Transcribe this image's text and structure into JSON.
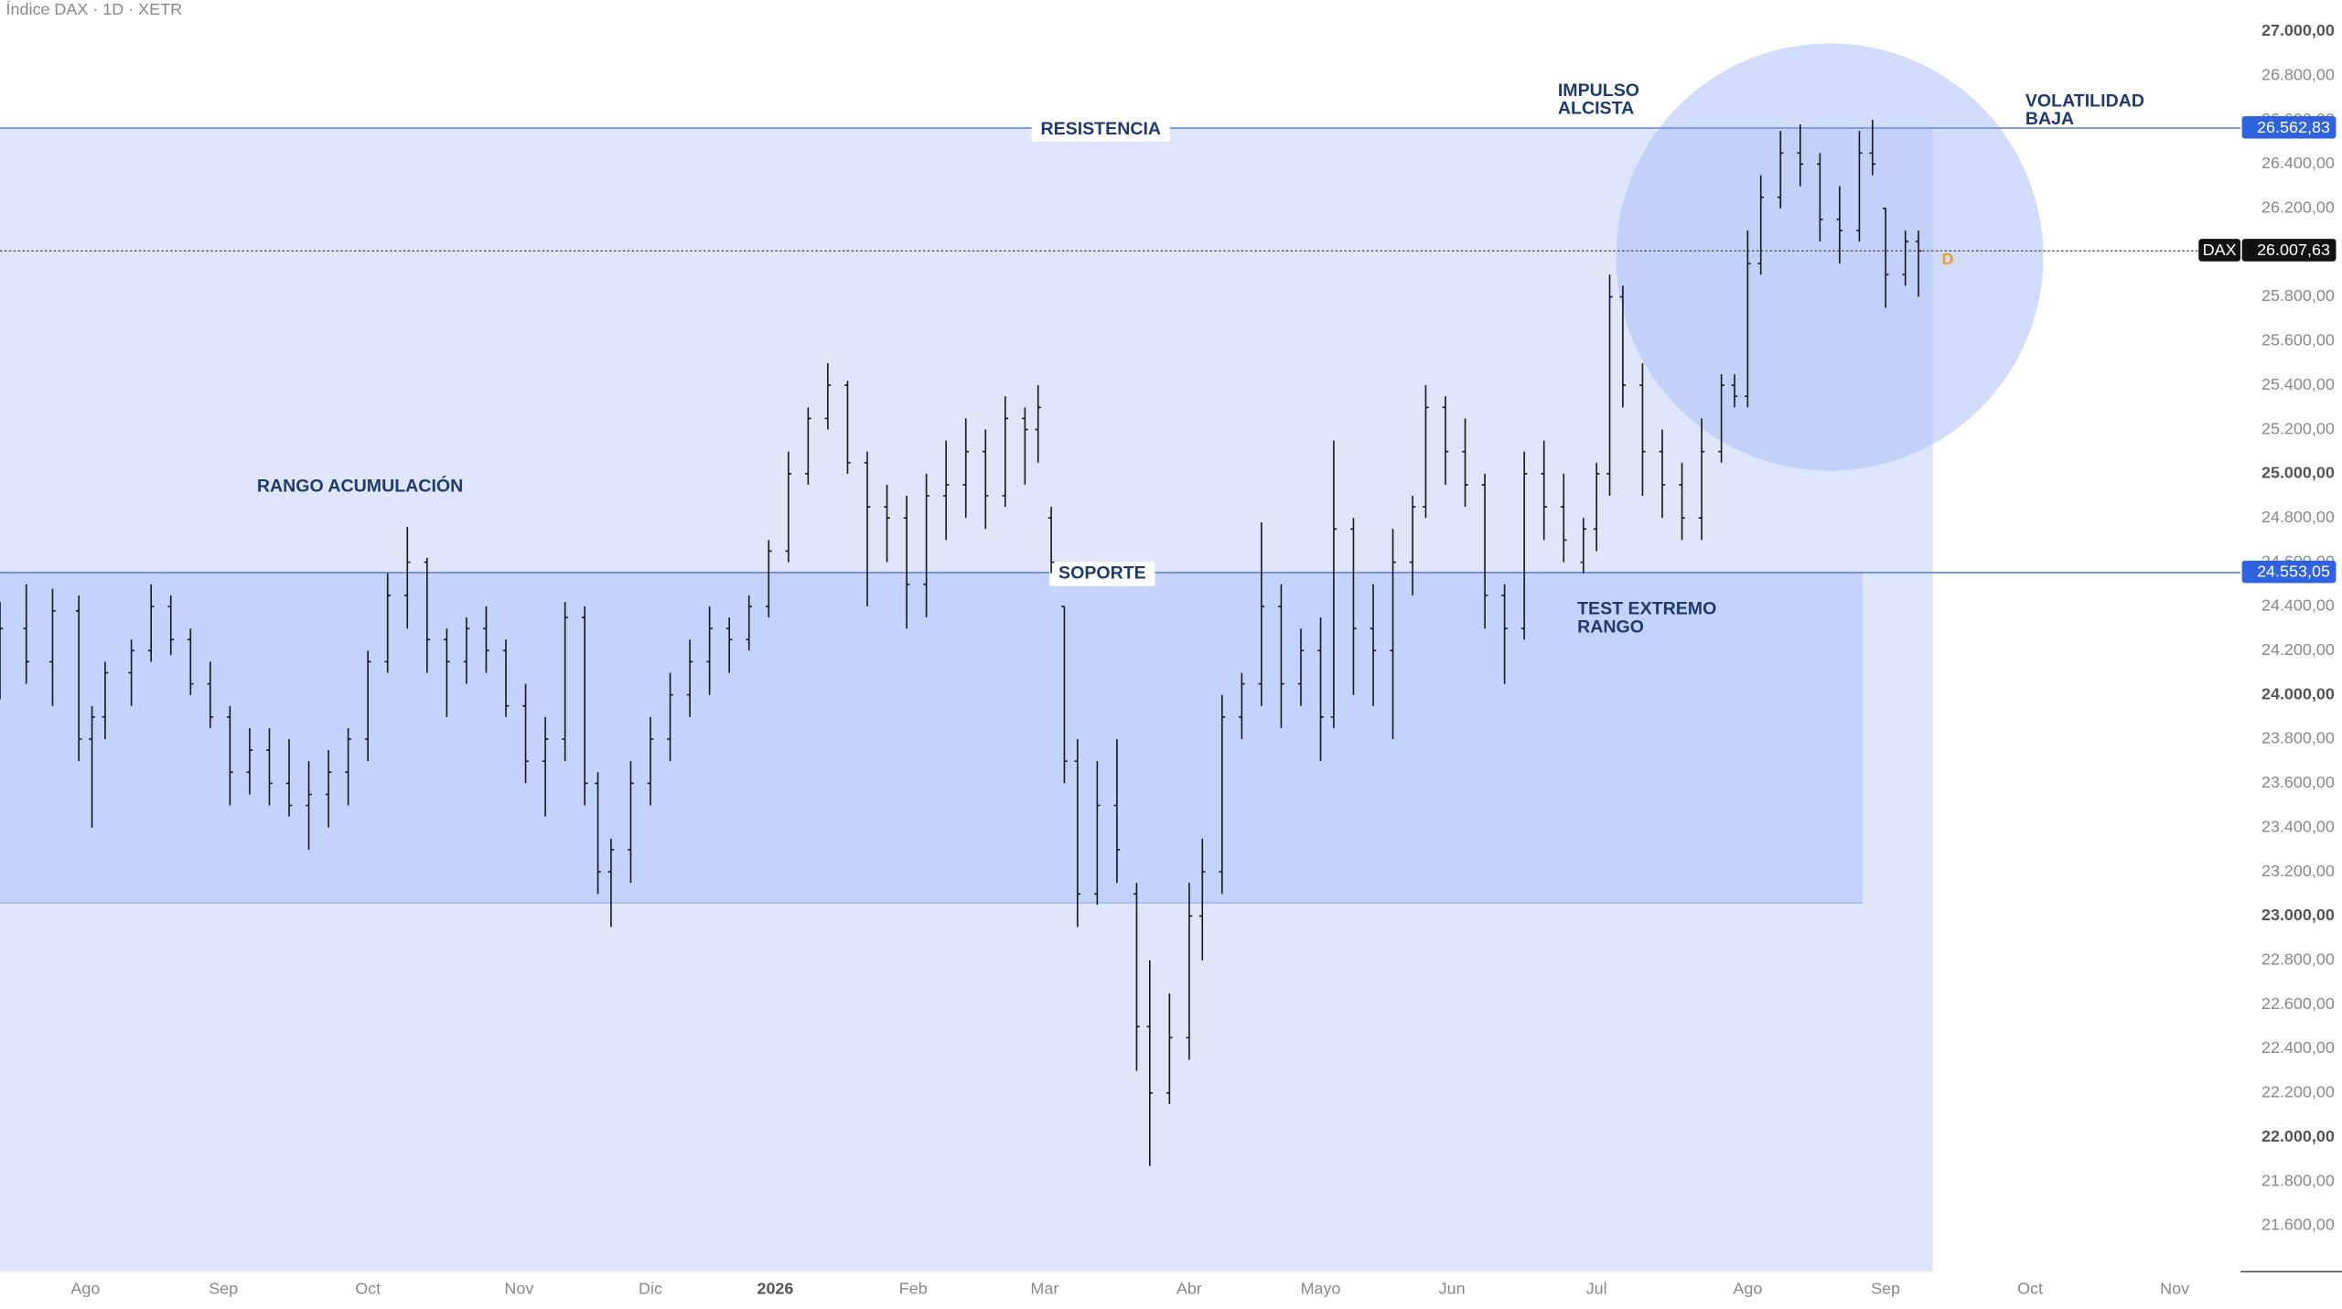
{
  "chart_data": {
    "type": "ohlc",
    "title": "Índice DAX · 1D · XETR",
    "xlim": [
      0,
      341
    ],
    "ylim": [
      21392,
      27142
    ],
    "xticks": [
      {
        "value": 13,
        "label": "Ago"
      },
      {
        "value": 34,
        "label": "Sep"
      },
      {
        "value": 56,
        "label": "Oct"
      },
      {
        "value": 79,
        "label": "Nov"
      },
      {
        "value": 99,
        "label": "Dic"
      },
      {
        "value": 118,
        "label": "2026"
      },
      {
        "value": 139,
        "label": "Feb"
      },
      {
        "value": 159,
        "label": "Mar"
      },
      {
        "value": 181,
        "label": "Abr"
      },
      {
        "value": 201,
        "label": "Mayo"
      },
      {
        "value": 221,
        "label": "Jun"
      },
      {
        "value": 243,
        "label": "Jul"
      },
      {
        "value": 266,
        "label": "Ago"
      },
      {
        "value": 287,
        "label": "Sep"
      },
      {
        "value": 309,
        "label": "Oct"
      },
      {
        "value": 331,
        "label": "Nov"
      }
    ],
    "yticks": [
      {
        "value": 21600,
        "label": "21.600,00"
      },
      {
        "value": 21800,
        "label": "21.800,00"
      },
      {
        "value": 22000,
        "label": "22.000,00"
      },
      {
        "value": 22200,
        "label": "22.200,00"
      },
      {
        "value": 22400,
        "label": "22.400,00"
      },
      {
        "value": 22600,
        "label": "22.600,00"
      },
      {
        "value": 22800,
        "label": "22.800,00"
      },
      {
        "value": 23000,
        "label": "23.000,00"
      },
      {
        "value": 23200,
        "label": "23.200,00"
      },
      {
        "value": 23400,
        "label": "23.400,00"
      },
      {
        "value": 23600,
        "label": "23.600,00"
      },
      {
        "value": 23800,
        "label": "23.800,00"
      },
      {
        "value": 24000,
        "label": "24.000,00"
      },
      {
        "value": 24200,
        "label": "24.200,00"
      },
      {
        "value": 24400,
        "label": "24.400,00"
      },
      {
        "value": 24600,
        "label": "24.600,00"
      },
      {
        "value": 24800,
        "label": "24.800,00"
      },
      {
        "value": 25000,
        "label": "25.000,00"
      },
      {
        "value": 25200,
        "label": "25.200,00"
      },
      {
        "value": 25400,
        "label": "25.400,00"
      },
      {
        "value": 25600,
        "label": "25.600,00"
      },
      {
        "value": 25800,
        "label": "25.800,00"
      },
      {
        "value": 26000,
        "label": "26.000,00"
      },
      {
        "value": 26200,
        "label": "26.200,00"
      },
      {
        "value": 26400,
        "label": "26.400,00"
      },
      {
        "value": 26600,
        "label": "26.600,00"
      },
      {
        "value": 26800,
        "label": "26.800,00"
      },
      {
        "value": 27000,
        "label": "27.000,00"
      }
    ],
    "resistance": {
      "value": 26562.83,
      "label": "26.562,83",
      "name": "RESISTENCIA"
    },
    "support": {
      "value": 24553.05,
      "label": "24.553,05",
      "name": "SOPORTE"
    },
    "range_low": 23060,
    "last": {
      "symbol": "DAX",
      "value": 26007.63,
      "label": "26.007,63",
      "flag": "D"
    },
    "annotations": [
      {
        "lines": [
          "RANGO ACUMULACIÓN"
        ]
      },
      {
        "lines": [
          "IMPULSO",
          "ALCISTA"
        ]
      },
      {
        "lines": [
          "VOLATILIDAD",
          "BAJA"
        ]
      },
      {
        "lines": [
          "TEST EXTREMO",
          "RANGO"
        ]
      }
    ],
    "color": "#1a1a1a",
    "x": [
      0,
      4,
      8,
      12,
      14,
      16,
      20,
      23,
      26,
      29,
      32,
      35,
      38,
      41,
      44,
      47,
      50,
      53,
      56,
      59,
      62,
      65,
      68,
      71,
      74,
      77,
      80,
      83,
      86,
      89,
      91,
      93,
      96,
      99,
      102,
      105,
      108,
      111,
      114,
      117,
      120,
      123,
      126,
      129,
      132,
      135,
      138,
      141,
      144,
      147,
      150,
      153,
      156,
      158,
      160,
      162,
      164,
      167,
      170,
      173,
      175,
      178,
      181,
      183,
      186,
      189,
      192,
      195,
      198,
      201,
      203,
      206,
      209,
      212,
      215,
      217,
      220,
      223,
      226,
      229,
      232,
      235,
      238,
      241,
      243,
      245,
      247,
      250,
      253,
      256,
      259,
      262,
      264,
      266,
      268,
      271,
      274,
      277,
      280,
      283,
      285,
      287,
      290,
      292
    ],
    "open": [
      24200,
      24300,
      24150,
      24380,
      23800,
      23900,
      24100,
      24200,
      24400,
      24250,
      24050,
      23900,
      23650,
      23750,
      23600,
      23500,
      23550,
      23650,
      23800,
      24150,
      24450,
      24600,
      24250,
      24150,
      24300,
      24200,
      23950,
      23700,
      23800,
      24350,
      23600,
      23200,
      23300,
      23600,
      23800,
      24000,
      24150,
      24300,
      24250,
      24400,
      24650,
      25000,
      25250,
      25400,
      25050,
      24850,
      24800,
      24500,
      24900,
      24950,
      25100,
      24900,
      25250,
      25200,
      24800,
      24400,
      23700,
      23100,
      23500,
      23100,
      22500,
      22200,
      22450,
      23000,
      23200,
      23900,
      24050,
      24400,
      24050,
      24200,
      23900,
      24750,
      24300,
      24200,
      24600,
      24850,
      25300,
      25100,
      24950,
      24450,
      24300,
      25000,
      24850,
      24600,
      24750,
      25000,
      25800,
      25400,
      25100,
      24950,
      24800,
      25100,
      25400,
      25350,
      25950,
      26250,
      26450,
      26400,
      26150,
      26100,
      26450,
      26200,
      25900,
      26050
    ],
    "high": [
      24420,
      24500,
      24480,
      24450,
      23950,
      24150,
      24250,
      24500,
      24450,
      24300,
      24150,
      23950,
      23850,
      23850,
      23800,
      23700,
      23750,
      23850,
      24200,
      24550,
      24760,
      24620,
      24300,
      24350,
      24400,
      24250,
      24050,
      23900,
      24420,
      24400,
      23650,
      23350,
      23700,
      23900,
      24100,
      24250,
      24400,
      24350,
      24450,
      24700,
      25100,
      25300,
      25500,
      25420,
      25100,
      24950,
      24900,
      25000,
      25150,
      25250,
      25200,
      25350,
      25300,
      25400,
      24850,
      24400,
      23800,
      23700,
      23800,
      23150,
      22800,
      22650,
      23150,
      23350,
      24000,
      24100,
      24780,
      24500,
      24300,
      24350,
      25150,
      24800,
      24500,
      24750,
      24900,
      25400,
      25350,
      25250,
      25000,
      24500,
      25100,
      25150,
      25000,
      24800,
      25050,
      25900,
      25850,
      25500,
      25200,
      25050,
      25250,
      25450,
      25450,
      26100,
      26350,
      26550,
      26580,
      26450,
      26300,
      26550,
      26600,
      26200,
      26100,
      26100
    ],
    "low": [
      23980,
      24050,
      23950,
      23700,
      23400,
      23800,
      23950,
      24150,
      24180,
      24000,
      23850,
      23500,
      23550,
      23500,
      23450,
      23300,
      23400,
      23500,
      23700,
      24100,
      24300,
      24100,
      23900,
      24050,
      24100,
      23900,
      23600,
      23450,
      23700,
      23500,
      23100,
      22950,
      23150,
      23500,
      23700,
      23900,
      24000,
      24100,
      24200,
      24350,
      24600,
      24950,
      25200,
      25000,
      24400,
      24600,
      24300,
      24350,
      24700,
      24800,
      24750,
      24850,
      24950,
      25050,
      24550,
      23600,
      22950,
      23050,
      23150,
      22300,
      21870,
      22150,
      22350,
      22800,
      23100,
      23800,
      23950,
      23850,
      23950,
      23700,
      23850,
      24000,
      23950,
      23800,
      24450,
      24800,
      24950,
      24850,
      24300,
      24050,
      24250,
      24700,
      24600,
      24550,
      24650,
      24900,
      25300,
      24900,
      24800,
      24700,
      24700,
      25050,
      25300,
      25300,
      25900,
      26200,
      26300,
      26050,
      25950,
      26050,
      26350,
      25750,
      25850,
      25800
    ],
    "close": [
      24300,
      24150,
      24380,
      23800,
      23900,
      24100,
      24200,
      24400,
      24250,
      24050,
      23900,
      23650,
      23750,
      23600,
      23500,
      23550,
      23650,
      23800,
      24150,
      24450,
      24600,
      24250,
      24150,
      24300,
      24200,
      23950,
      23700,
      23800,
      24350,
      23600,
      23200,
      23300,
      23600,
      23800,
      24000,
      24150,
      24300,
      24250,
      24400,
      24650,
      25000,
      25250,
      25400,
      25050,
      24850,
      24800,
      24500,
      24900,
      24950,
      25100,
      24900,
      25250,
      25200,
      25300,
      24600,
      23700,
      23100,
      23500,
      23300,
      22500,
      22200,
      22450,
      23000,
      23200,
      23900,
      24050,
      24400,
      24050,
      24200,
      23900,
      24750,
      24300,
      24200,
      24600,
      24850,
      25300,
      25100,
      24950,
      24450,
      24300,
      25000,
      24850,
      24700,
      24750,
      25000,
      25800,
      25400,
      25100,
      24950,
      24800,
      25100,
      25400,
      25350,
      25950,
      26250,
      26450,
      26400,
      26150,
      26100,
      26450,
      26400,
      25900,
      26050,
      26007.63
    ]
  }
}
